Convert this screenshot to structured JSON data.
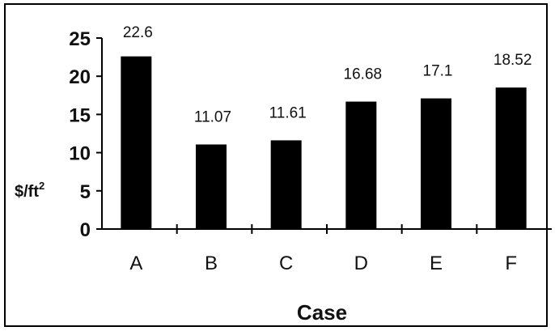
{
  "chart_data": {
    "type": "bar",
    "categories": [
      "A",
      "B",
      "C",
      "D",
      "E",
      "F"
    ],
    "values": [
      22.6,
      11.07,
      11.61,
      16.68,
      17.1,
      18.52
    ],
    "data_labels": [
      "22.6",
      "11.07",
      "11.61",
      "16.68",
      "17.1",
      "18.52"
    ],
    "yticks": [
      0,
      5,
      10,
      15,
      20,
      25
    ],
    "ylim": [
      0,
      25
    ],
    "xlabel": "Case",
    "ylabel": "$/ft",
    "ylabel_superscript": "2",
    "grid": false,
    "legend": "none",
    "bar_color": "#000000"
  }
}
